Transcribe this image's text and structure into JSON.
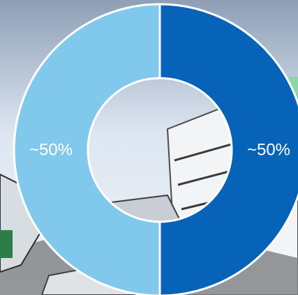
{
  "chart_data": {
    "type": "pie",
    "variant": "donut",
    "categories": [
      "",
      ""
    ],
    "values": [
      50,
      50
    ],
    "labels": [
      "~50%",
      "~50%"
    ],
    "colors": [
      "#0763b8",
      "#80c9ec"
    ],
    "title": "",
    "legend": "none"
  },
  "style": {
    "ring_stroke": "#ffffff",
    "label_color": "#ffffff"
  }
}
